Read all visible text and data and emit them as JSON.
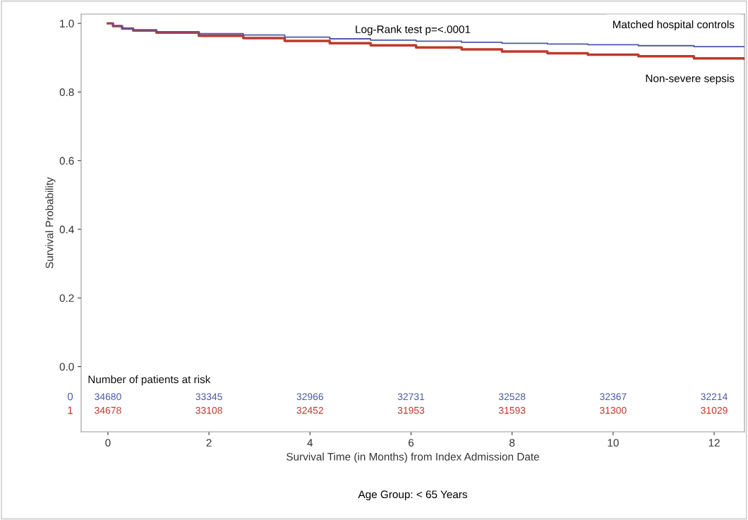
{
  "chart_data": {
    "type": "step",
    "xlabel": "Survival Time (in Months) from Index Admission Date",
    "ylabel": "Survival Probability",
    "xlim": [
      -0.53,
      12.6
    ],
    "ylim": [
      -0.19,
      1.027
    ],
    "xticks": [
      0,
      2,
      4,
      6,
      8,
      10,
      12
    ],
    "yticks": [
      {
        "value": 0,
        "label": "0.0"
      },
      {
        "value": 0.2,
        "label": "0.2"
      },
      {
        "value": 0.4,
        "label": "0.4"
      },
      {
        "value": 0.6,
        "label": "0.6"
      },
      {
        "value": 0.8,
        "label": "0.8"
      },
      {
        "value": 1,
        "label": "1.0"
      }
    ],
    "grid": false,
    "legend": false,
    "marker": "none",
    "line_style": "solid",
    "series": [
      {
        "name": "Matched hospital controls",
        "color": "#4a5aa8",
        "x": [
          0,
          0.1,
          0.28,
          0.5,
          0.96,
          1.8,
          2.68,
          3.5,
          4.39,
          5.2,
          6.1,
          7.0,
          7.8,
          8.7,
          9.5,
          10.5,
          11.6,
          12.6
        ],
        "values": [
          1.0,
          0.993,
          0.986,
          0.981,
          0.976,
          0.97,
          0.966,
          0.96,
          0.955,
          0.951,
          0.948,
          0.945,
          0.942,
          0.94,
          0.938,
          0.935,
          0.932,
          0.932
        ]
      },
      {
        "name": "Non-severe sepsis",
        "color": "#c0392b",
        "x": [
          0,
          0.1,
          0.28,
          0.5,
          0.96,
          1.8,
          2.68,
          3.5,
          4.39,
          5.2,
          6.1,
          7.0,
          7.8,
          8.7,
          9.5,
          10.5,
          11.6,
          12.6
        ],
        "values": [
          1.0,
          0.992,
          0.985,
          0.979,
          0.973,
          0.964,
          0.957,
          0.949,
          0.942,
          0.936,
          0.93,
          0.924,
          0.918,
          0.913,
          0.909,
          0.904,
          0.898,
          0.897
        ]
      }
    ],
    "annotations": [
      "Log-Rank test p=<.0001",
      "Number of patients at risk",
      "0",
      "34680",
      "33345",
      "32966",
      "32731",
      "32528",
      "32367",
      "32214",
      "1",
      "34678",
      "33108",
      "32452",
      "31953",
      "31593",
      "31300",
      "31029",
      "Age Group: < 65 Years"
    ]
  }
}
